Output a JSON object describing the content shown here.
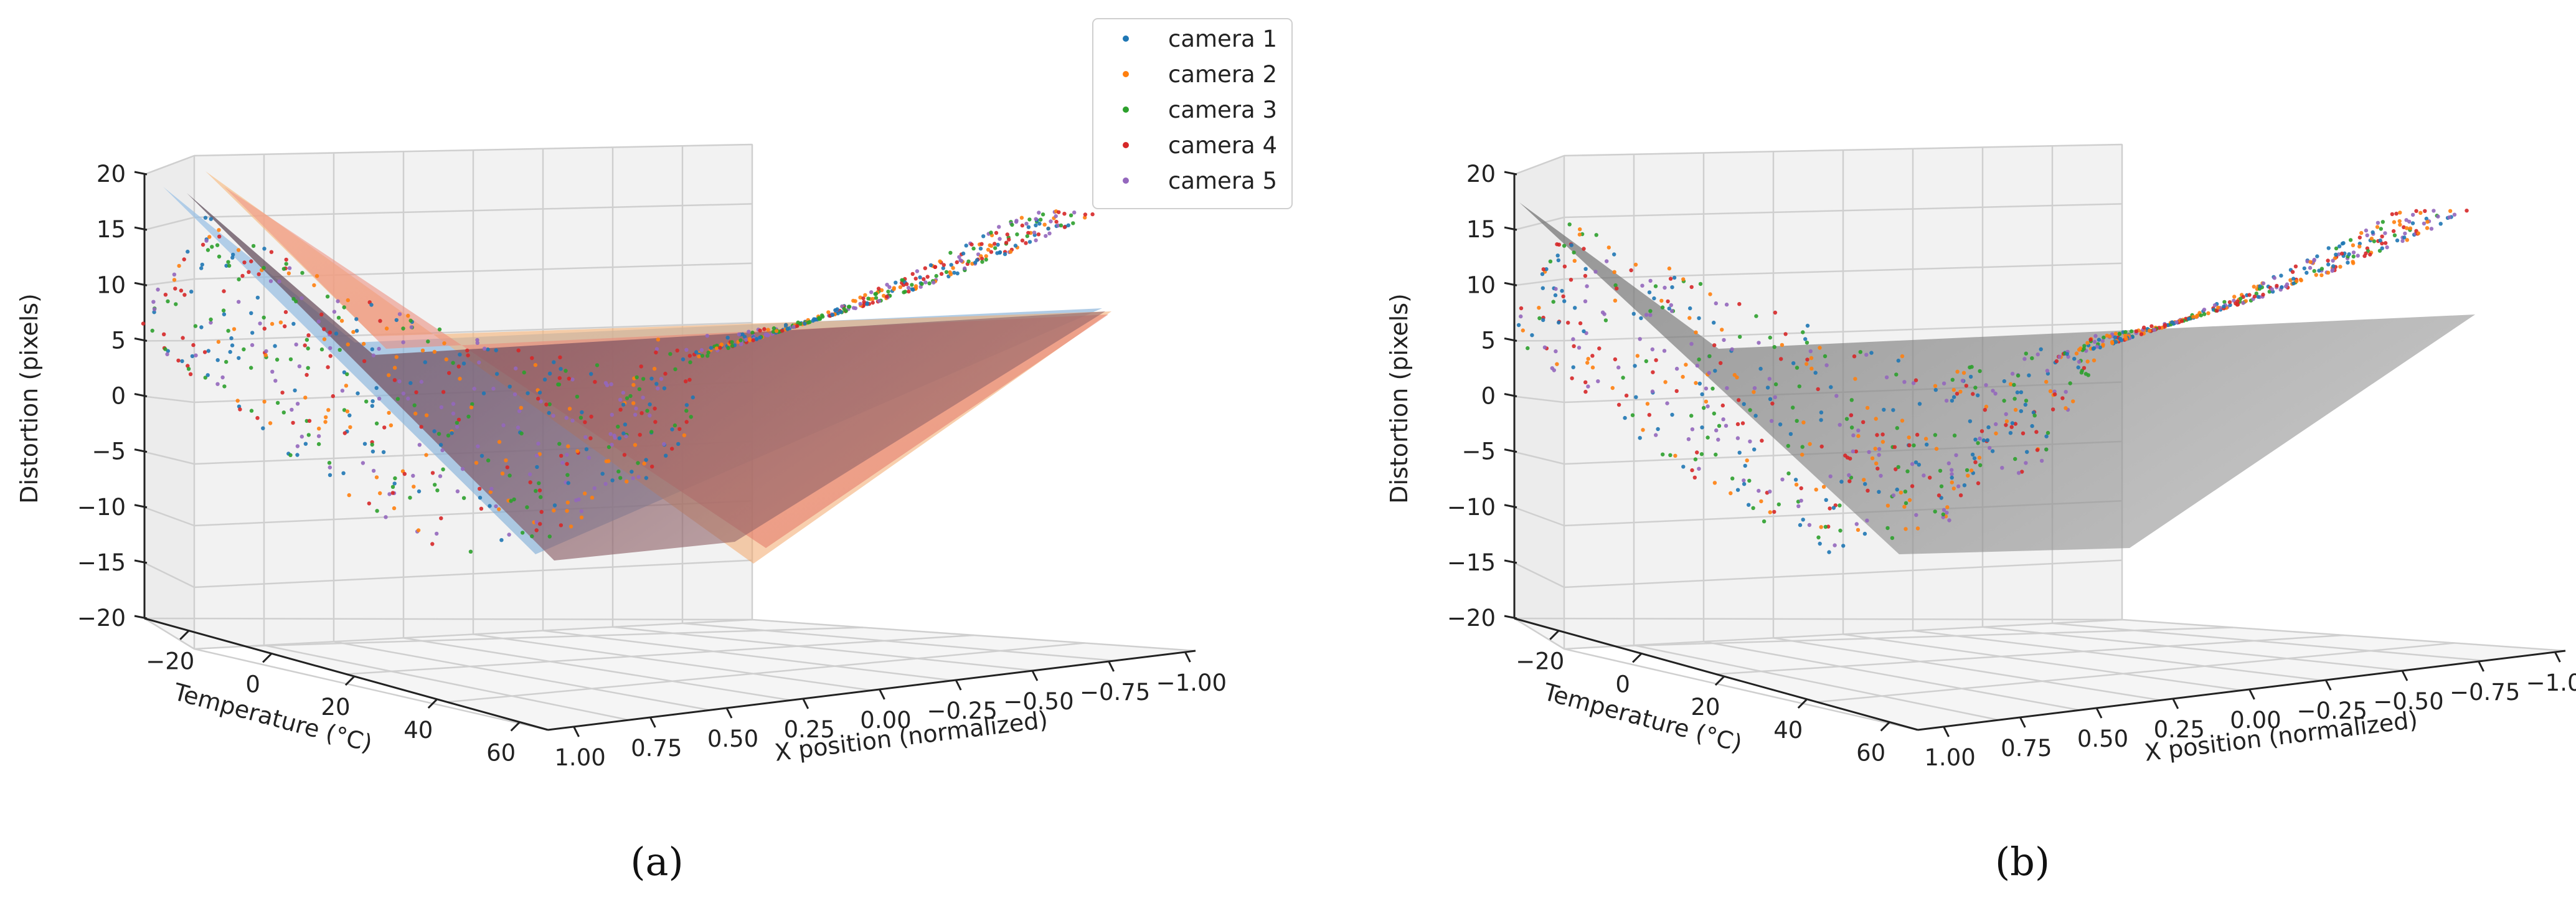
{
  "chart_data": [
    {
      "type": "scatter",
      "panel_label": "(a)",
      "xlabel": "X position (normalized)",
      "ylabel": "Temperature (°C)",
      "zlabel": "Distortion (pixels)",
      "x_ticks": [
        "1.00",
        "0.75",
        "0.50",
        "0.25",
        "0.00",
        "−0.25",
        "−0.50",
        "−0.75",
        "−1.00"
      ],
      "y_ticks": [
        "−20",
        "0",
        "20",
        "40",
        "60"
      ],
      "z_ticks": [
        "20",
        "15",
        "10",
        "5",
        "0",
        "−5",
        "−10",
        "−15",
        "−20"
      ],
      "xlim": [
        -1,
        1
      ],
      "ylim": [
        -30,
        70
      ],
      "zlim": [
        -20,
        20
      ],
      "series": [
        {
          "name": "camera 1",
          "color": "#1f77b4"
        },
        {
          "name": "camera 2",
          "color": "#ff7f0e"
        },
        {
          "name": "camera 3",
          "color": "#2ca02c"
        },
        {
          "name": "camera 4",
          "color": "#d62728"
        },
        {
          "name": "camera 5",
          "color": "#9467bd"
        }
      ],
      "fit_surfaces": "one translucent fitted surface per camera",
      "legend": "top-right"
    },
    {
      "type": "scatter",
      "panel_label": "(b)",
      "xlabel": "X position (normalized)",
      "ylabel": "Temperature (°C)",
      "zlabel": "Distortion (pixels)",
      "x_ticks": [
        "1.00",
        "0.75",
        "0.50",
        "0.25",
        "0.00",
        "−0.25",
        "−0.50",
        "−0.75",
        "−1.00"
      ],
      "y_ticks": [
        "−20",
        "0",
        "20",
        "40",
        "60"
      ],
      "z_ticks": [
        "20",
        "15",
        "10",
        "5",
        "0",
        "−5",
        "−10",
        "−15",
        "−20"
      ],
      "xlim": [
        -1,
        1
      ],
      "ylim": [
        -30,
        70
      ],
      "zlim": [
        -20,
        20
      ],
      "fit_surfaces": "single grey fitted surface"
    }
  ]
}
